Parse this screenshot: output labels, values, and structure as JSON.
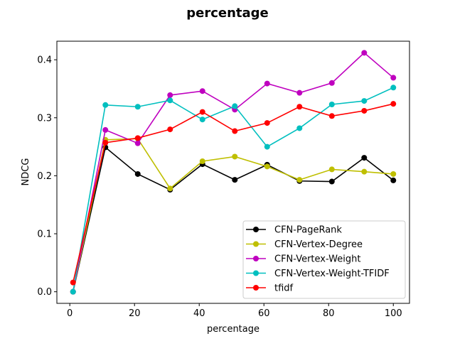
{
  "chart_data": {
    "type": "line",
    "title": "percentage",
    "xlabel": "percentage",
    "ylabel": "NDCG",
    "xlim": [
      -4,
      105
    ],
    "ylim": [
      -0.02,
      0.432
    ],
    "xticks": [
      0,
      20,
      40,
      60,
      80,
      100
    ],
    "yticks": [
      0.0,
      0.1,
      0.2,
      0.3,
      0.4
    ],
    "ytick_labels": [
      "0.0",
      "0.1",
      "0.2",
      "0.3",
      "0.4"
    ],
    "grid": false,
    "legend_position": "lower-right",
    "x": [
      1,
      11,
      21,
      31,
      41,
      51,
      61,
      71,
      81,
      91,
      100
    ],
    "series": [
      {
        "name": "CFN-PageRank",
        "color": "#000000",
        "values": [
          0.0,
          0.249,
          0.203,
          0.176,
          0.22,
          0.193,
          0.219,
          0.191,
          0.19,
          0.231,
          0.192
        ]
      },
      {
        "name": "CFN-Vertex-Degree",
        "color": "#bfbf00",
        "values": [
          0.0,
          0.262,
          0.264,
          0.178,
          0.225,
          0.233,
          0.216,
          0.193,
          0.211,
          0.207,
          0.203
        ]
      },
      {
        "name": "CFN-Vertex-Weight",
        "color": "#bf00bf",
        "values": [
          0.0,
          0.279,
          0.256,
          0.339,
          0.346,
          0.314,
          0.359,
          0.343,
          0.36,
          0.412,
          0.369
        ]
      },
      {
        "name": "CFN-Vertex-Weight-TFIDF",
        "color": "#00bfbf",
        "values": [
          0.0,
          0.322,
          0.319,
          0.33,
          0.297,
          0.32,
          0.25,
          0.282,
          0.323,
          0.329,
          0.352
        ]
      },
      {
        "name": "tfidf",
        "color": "#ff0000",
        "values": [
          0.016,
          0.257,
          0.265,
          0.28,
          0.31,
          0.277,
          0.291,
          0.319,
          0.303,
          0.312,
          0.324
        ]
      }
    ]
  }
}
